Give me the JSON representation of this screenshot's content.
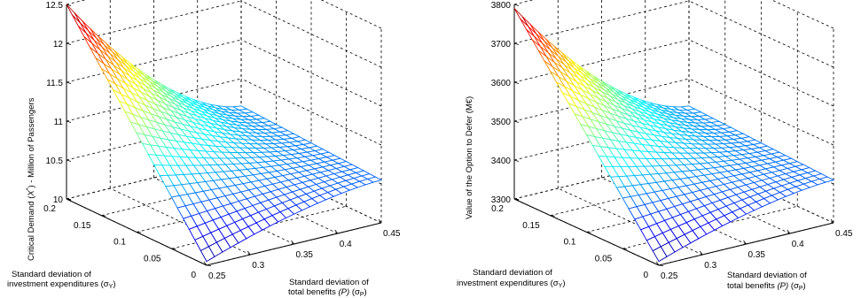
{
  "chart_data": [
    {
      "type": "surface",
      "zlabel": "Critical Demand (X*) - Million of Passengers",
      "zlabel_parts": [
        "Critical Demand ",
        "(",
        "X",
        "*",
        ") - Million of Passengers"
      ],
      "ylabel_lines": [
        "Standard deviation of",
        "investment expenditures (σ",
        "Y",
        ")"
      ],
      "xlabel_lines": [
        "Standard deviation of",
        "total benefits ",
        "(P)",
        " (σ",
        "P",
        ")"
      ],
      "x_ticks": [
        "0.25",
        "0.3",
        "0.35",
        "0.4",
        "0.45"
      ],
      "y_ticks": [
        "0",
        "0.05",
        "0.1",
        "0.15",
        "0.2"
      ],
      "z_ticks": [
        "10",
        "10.5",
        "11",
        "11.5",
        "12",
        "12.5"
      ],
      "xlim": [
        0.25,
        0.45
      ],
      "ylim": [
        0,
        0.2
      ],
      "zlim": [
        10,
        12.5
      ],
      "grid": true,
      "colormap": "jet",
      "surface": {
        "x_range": [
          0.25,
          0.45
        ],
        "y_range": [
          0,
          0.2
        ],
        "corners_z": {
          "x_min_y_min": 10.05,
          "x_max_y_min": 10.55,
          "x_min_y_max": 12.5,
          "x_max_y_max": 10.65
        }
      }
    },
    {
      "type": "surface",
      "zlabel": "Value of the Option to Defer (M€)",
      "ylabel_lines": [
        "Standard deviation of",
        "investment expenditures (σ",
        "Y",
        ")"
      ],
      "xlabel_lines": [
        "Standard deviation of",
        "total benefits ",
        "(P)",
        " (σ",
        "P",
        ")"
      ],
      "x_ticks": [
        "0.25",
        "0.3",
        "0.35",
        "0.4",
        "0.45"
      ],
      "y_ticks": [
        "0",
        "0.05",
        "0.1",
        "0.15",
        "0.2"
      ],
      "z_ticks": [
        "3300",
        "3400",
        "3500",
        "3600",
        "3700",
        "3800"
      ],
      "xlim": [
        0.25,
        0.45
      ],
      "ylim": [
        0,
        0.2
      ],
      "zlim": [
        3300,
        3800
      ],
      "grid": true,
      "colormap": "jet",
      "surface": {
        "x_range": [
          0.25,
          0.45
        ],
        "y_range": [
          0,
          0.2
        ],
        "corners_z": {
          "x_min_y_min": 3310,
          "x_max_y_min": 3410,
          "x_min_y_max": 3790,
          "x_max_y_max": 3430
        }
      }
    }
  ]
}
